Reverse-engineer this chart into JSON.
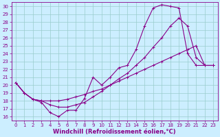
{
  "xlabel": "Windchill (Refroidissement éolien,°C)",
  "bg_color": "#cceeff",
  "line_color": "#880088",
  "grid_color": "#99cccc",
  "xlim": [
    -0.5,
    23.5
  ],
  "ylim": [
    15.5,
    30.5
  ],
  "xticks": [
    0,
    1,
    2,
    3,
    4,
    5,
    6,
    7,
    8,
    9,
    10,
    11,
    12,
    13,
    14,
    15,
    16,
    17,
    18,
    19,
    20,
    21,
    22,
    23
  ],
  "yticks": [
    16,
    17,
    18,
    19,
    20,
    21,
    22,
    23,
    24,
    25,
    26,
    27,
    28,
    29,
    30
  ],
  "line1_x": [
    0,
    1,
    2,
    3,
    4,
    5,
    6,
    7,
    8,
    9,
    10,
    11,
    12,
    13,
    14,
    15,
    16,
    17,
    18,
    19,
    20,
    21,
    22,
    23
  ],
  "line1_y": [
    20.3,
    19.0,
    18.2,
    17.8,
    16.5,
    16.0,
    16.8,
    16.8,
    18.3,
    21.0,
    20.0,
    21.0,
    22.2,
    22.5,
    24.5,
    27.5,
    29.8,
    30.2,
    30.0,
    29.8,
    24.0,
    22.5,
    22.5,
    22.5
  ],
  "line2_x": [
    0,
    1,
    2,
    3,
    4,
    5,
    6,
    7,
    8,
    9,
    10,
    11,
    12,
    13,
    14,
    15,
    16,
    17,
    18,
    19,
    20,
    21,
    22,
    23
  ],
  "line2_y": [
    20.3,
    19.0,
    18.2,
    18.0,
    17.5,
    17.2,
    17.2,
    17.5,
    17.8,
    18.5,
    19.2,
    20.0,
    20.8,
    21.5,
    22.5,
    23.5,
    24.8,
    26.0,
    27.5,
    28.5,
    27.5,
    23.5,
    22.5,
    22.5
  ],
  "line3_x": [
    0,
    1,
    2,
    3,
    4,
    5,
    6,
    7,
    8,
    9,
    10,
    11,
    12,
    13,
    14,
    15,
    16,
    17,
    18,
    19,
    20,
    21,
    22,
    23
  ],
  "line3_y": [
    20.3,
    19.0,
    18.2,
    18.0,
    18.0,
    18.0,
    18.2,
    18.5,
    18.8,
    19.2,
    19.5,
    20.0,
    20.5,
    21.0,
    21.5,
    22.0,
    22.5,
    23.0,
    23.5,
    24.0,
    24.5,
    25.0,
    22.5,
    22.5
  ],
  "tick_fontsize": 5.0,
  "label_fontsize": 6.0,
  "marker_size": 3.0,
  "line_width": 0.8
}
